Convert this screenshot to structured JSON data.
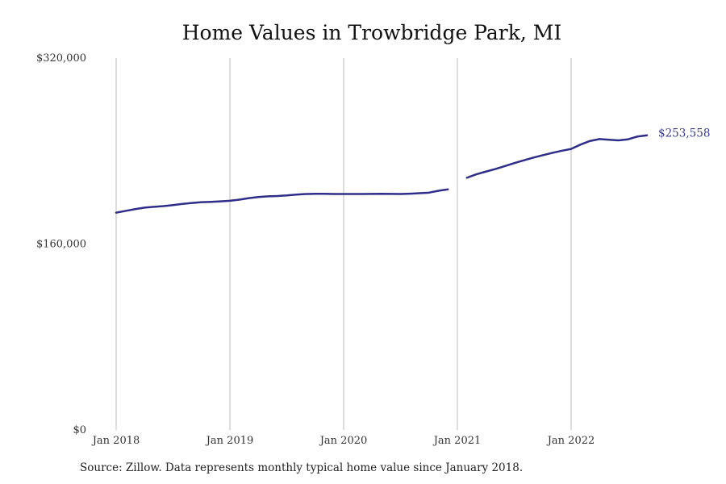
{
  "chart_data": {
    "type": "line",
    "title": "Home Values in Trowbridge Park, MI",
    "xlabel": "",
    "ylabel": "",
    "ylim": [
      0,
      320000
    ],
    "y_ticks": [
      0,
      160000,
      320000
    ],
    "y_tick_labels": [
      "$0",
      "$160,000",
      "$320,000"
    ],
    "x_ticks": [
      "2018-01",
      "2019-01",
      "2020-01",
      "2021-01",
      "2022-01"
    ],
    "x_tick_labels": [
      "Jan 2018",
      "Jan 2019",
      "Jan 2020",
      "Jan 2021",
      "Jan 2022"
    ],
    "grid": "vertical",
    "line_color": "#2e2e8a",
    "grid_color": "#bbbbbb",
    "end_label": "$253,558",
    "series": [
      {
        "segments": [
          [
            [
              "2018-01",
              187000
            ],
            [
              "2018-02",
              188500
            ],
            [
              "2018-03",
              190000
            ],
            [
              "2018-04",
              191300
            ],
            [
              "2018-05",
              192000
            ],
            [
              "2018-06",
              192600
            ],
            [
              "2018-07",
              193500
            ],
            [
              "2018-08",
              194500
            ],
            [
              "2018-09",
              195300
            ],
            [
              "2018-10",
              196000
            ],
            [
              "2018-11",
              196300
            ],
            [
              "2018-12",
              196700
            ],
            [
              "2019-01",
              197200
            ],
            [
              "2019-02",
              198200
            ],
            [
              "2019-03",
              199500
            ],
            [
              "2019-04",
              200400
            ],
            [
              "2019-05",
              201000
            ],
            [
              "2019-06",
              201300
            ],
            [
              "2019-07",
              201800
            ],
            [
              "2019-08",
              202500
            ],
            [
              "2019-09",
              203000
            ],
            [
              "2019-10",
              203200
            ],
            [
              "2019-11",
              203200
            ],
            [
              "2019-12",
              203000
            ],
            [
              "2020-01",
              203000
            ],
            [
              "2020-02",
              203000
            ],
            [
              "2020-03",
              203000
            ],
            [
              "2020-04",
              203100
            ],
            [
              "2020-05",
              203200
            ],
            [
              "2020-06",
              203100
            ],
            [
              "2020-07",
              203000
            ],
            [
              "2020-08",
              203300
            ],
            [
              "2020-09",
              203700
            ],
            [
              "2020-10",
              204200
            ],
            [
              "2020-11",
              205800
            ],
            [
              "2020-12",
              207000
            ]
          ],
          [
            [
              "2021-02",
              217000
            ],
            [
              "2021-03",
              220000
            ],
            [
              "2021-04",
              222300
            ],
            [
              "2021-05",
              224500
            ],
            [
              "2021-06",
              227000
            ],
            [
              "2021-07",
              229600
            ],
            [
              "2021-08",
              232000
            ],
            [
              "2021-09",
              234300
            ],
            [
              "2021-10",
              236400
            ],
            [
              "2021-11",
              238400
            ],
            [
              "2021-12",
              240200
            ],
            [
              "2022-01",
              241800
            ],
            [
              "2022-02",
              245600
            ],
            [
              "2022-03",
              248700
            ],
            [
              "2022-04",
              250300
            ],
            [
              "2022-05",
              249700
            ],
            [
              "2022-06",
              249200
            ],
            [
              "2022-07",
              250100
            ],
            [
              "2022-08",
              252500
            ],
            [
              "2022-09",
              253558
            ]
          ]
        ]
      }
    ]
  },
  "footer": {
    "source": "Source: Zillow. Data represents monthly typical home value since January 2018."
  }
}
